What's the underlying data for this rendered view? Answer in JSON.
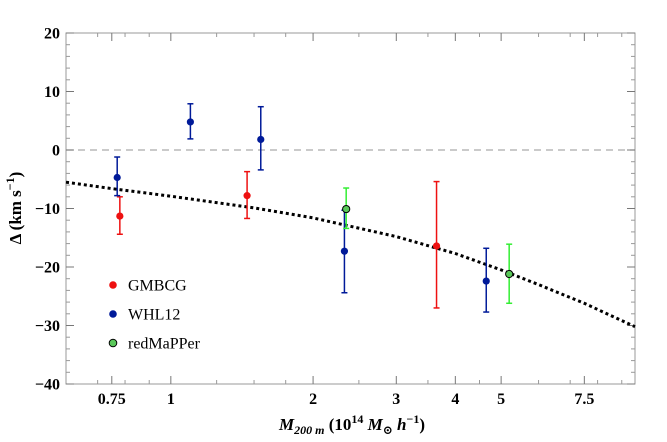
{
  "chart_data": {
    "type": "scatter",
    "title": "",
    "xlabel": {
      "main": "M",
      "sub": "200 m",
      "paren_open": " (10",
      "exp": "14",
      "unit_main": " M",
      "unit_sub": "⊙",
      "unit_h": " h",
      "unit_h_exp": "−1",
      "paren_close": ")"
    },
    "ylabel": {
      "main": "Δ (km s",
      "exp": "−1",
      "close": ")"
    },
    "x_scale": "log",
    "xlim": [
      0.6,
      9.6
    ],
    "ylim": [
      -40,
      20
    ],
    "x_ticks": [
      {
        "value": 0.75,
        "label": "0.75"
      },
      {
        "value": 1,
        "label": "1"
      },
      {
        "value": 2,
        "label": "2"
      },
      {
        "value": 3,
        "label": "3"
      },
      {
        "value": 4,
        "label": "4"
      },
      {
        "value": 5,
        "label": "5"
      },
      {
        "value": 7.5,
        "label": "7.5"
      }
    ],
    "y_ticks": [
      {
        "value": 20,
        "label": "20"
      },
      {
        "value": 10,
        "label": "10"
      },
      {
        "value": 0,
        "label": "0"
      },
      {
        "value": -10,
        "label": "−10"
      },
      {
        "value": -20,
        "label": "−20"
      },
      {
        "value": -30,
        "label": "−30"
      },
      {
        "value": -40,
        "label": "−40"
      }
    ],
    "reference_line": {
      "y": 0,
      "style": "dashed",
      "color": "#aaaaaa"
    },
    "fit_curve": {
      "style": "dotted",
      "color": "#000000",
      "x": [
        0.6,
        0.75,
        1.0,
        1.5,
        2.0,
        3.0,
        4.0,
        5.0,
        6.0,
        7.5,
        9.6
      ],
      "y": [
        -5.5,
        -6.6,
        -7.9,
        -9.9,
        -11.6,
        -14.8,
        -17.7,
        -20.5,
        -23.0,
        -26.2,
        -30.2
      ]
    },
    "series": [
      {
        "name": "GMBCG",
        "color": "#ee1111",
        "marker_fill": "#ee1111",
        "points": [
          {
            "x": 0.78,
            "y": -11.3,
            "lo": -14.4,
            "hi": -8.0
          },
          {
            "x": 1.45,
            "y": -7.8,
            "lo": -11.7,
            "hi": -3.7
          },
          {
            "x": 3.65,
            "y": -16.4,
            "lo": -27.0,
            "hi": -5.4
          }
        ]
      },
      {
        "name": "WHL12",
        "color": "#001a99",
        "marker_fill": "#001a99",
        "points": [
          {
            "x": 0.77,
            "y": -4.7,
            "lo": -7.8,
            "hi": -1.2
          },
          {
            "x": 1.1,
            "y": 4.8,
            "lo": 1.9,
            "hi": 7.9
          },
          {
            "x": 1.55,
            "y": 1.8,
            "lo": -3.4,
            "hi": 7.4
          },
          {
            "x": 2.33,
            "y": -17.3,
            "lo": -24.4,
            "hi": -10.3
          },
          {
            "x": 4.65,
            "y": -22.4,
            "lo": -27.7,
            "hi": -16.8
          }
        ]
      },
      {
        "name": "redMaPPer",
        "color": "#33ee33",
        "marker_fill": "#5ac85a",
        "marker_edge": "#000000",
        "points": [
          {
            "x": 2.35,
            "y": -10.1,
            "lo": -13.4,
            "hi": -6.5
          },
          {
            "x": 5.2,
            "y": -21.2,
            "lo": -26.2,
            "hi": -16.1
          }
        ]
      }
    ],
    "legend": {
      "placement": "lower-left",
      "items": [
        {
          "label": "GMBCG",
          "series": 0
        },
        {
          "label": "WHL12",
          "series": 1
        },
        {
          "label": "redMaPPer",
          "series": 2
        }
      ]
    }
  }
}
